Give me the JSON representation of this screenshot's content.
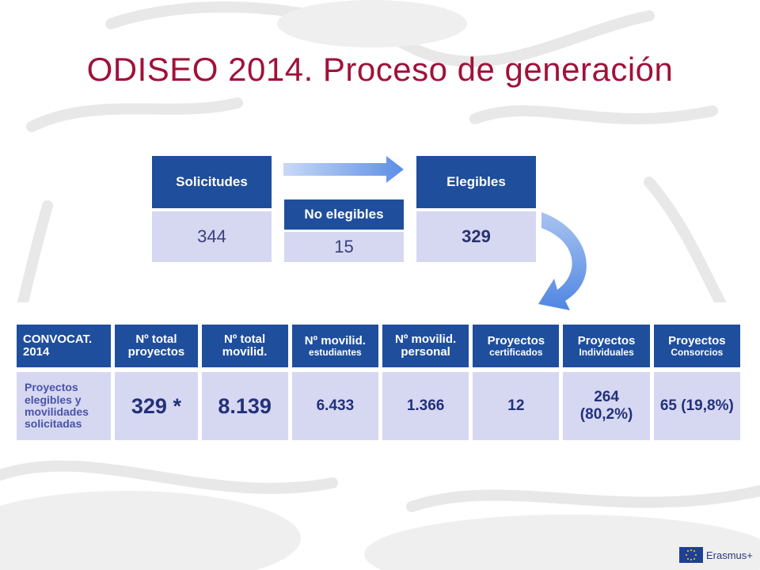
{
  "slide": {
    "title": "ODISEO 2014. Proceso de generación"
  },
  "flow": {
    "solicitudes": {
      "label": "Solicitudes",
      "value": "344"
    },
    "no_elegibles": {
      "label": "No elegibles",
      "value": "15"
    },
    "elegibles": {
      "label": "Elegibles",
      "value": "329"
    }
  },
  "table": {
    "headers": [
      {
        "main": "CONVOCAT. 2014",
        "sub": ""
      },
      {
        "main": "Nº total proyectos",
        "sub": ""
      },
      {
        "main": "Nº total movilid.",
        "sub": ""
      },
      {
        "main": "Nº movilid.",
        "sub": "estudiantes"
      },
      {
        "main": "Nº movilid. personal",
        "sub": ""
      },
      {
        "main": "Proyectos",
        "sub": "certificados"
      },
      {
        "main": "Proyectos",
        "sub": "Individuales"
      },
      {
        "main": "Proyectos",
        "sub": "Consorcios"
      }
    ],
    "row": [
      "Proyectos elegibles y movilidades solicitadas",
      "329 *",
      "8.139",
      "6.433",
      "1.366",
      "12",
      "264 (80,2%)",
      "65 (19,8%)"
    ]
  },
  "footer": {
    "brand": "Erasmus+"
  },
  "colors": {
    "title": "#a0123a",
    "header_blue": "#1f4e9c",
    "cell_lavender": "#d6d8f2",
    "arrow_blue": "#5b8ee6"
  }
}
